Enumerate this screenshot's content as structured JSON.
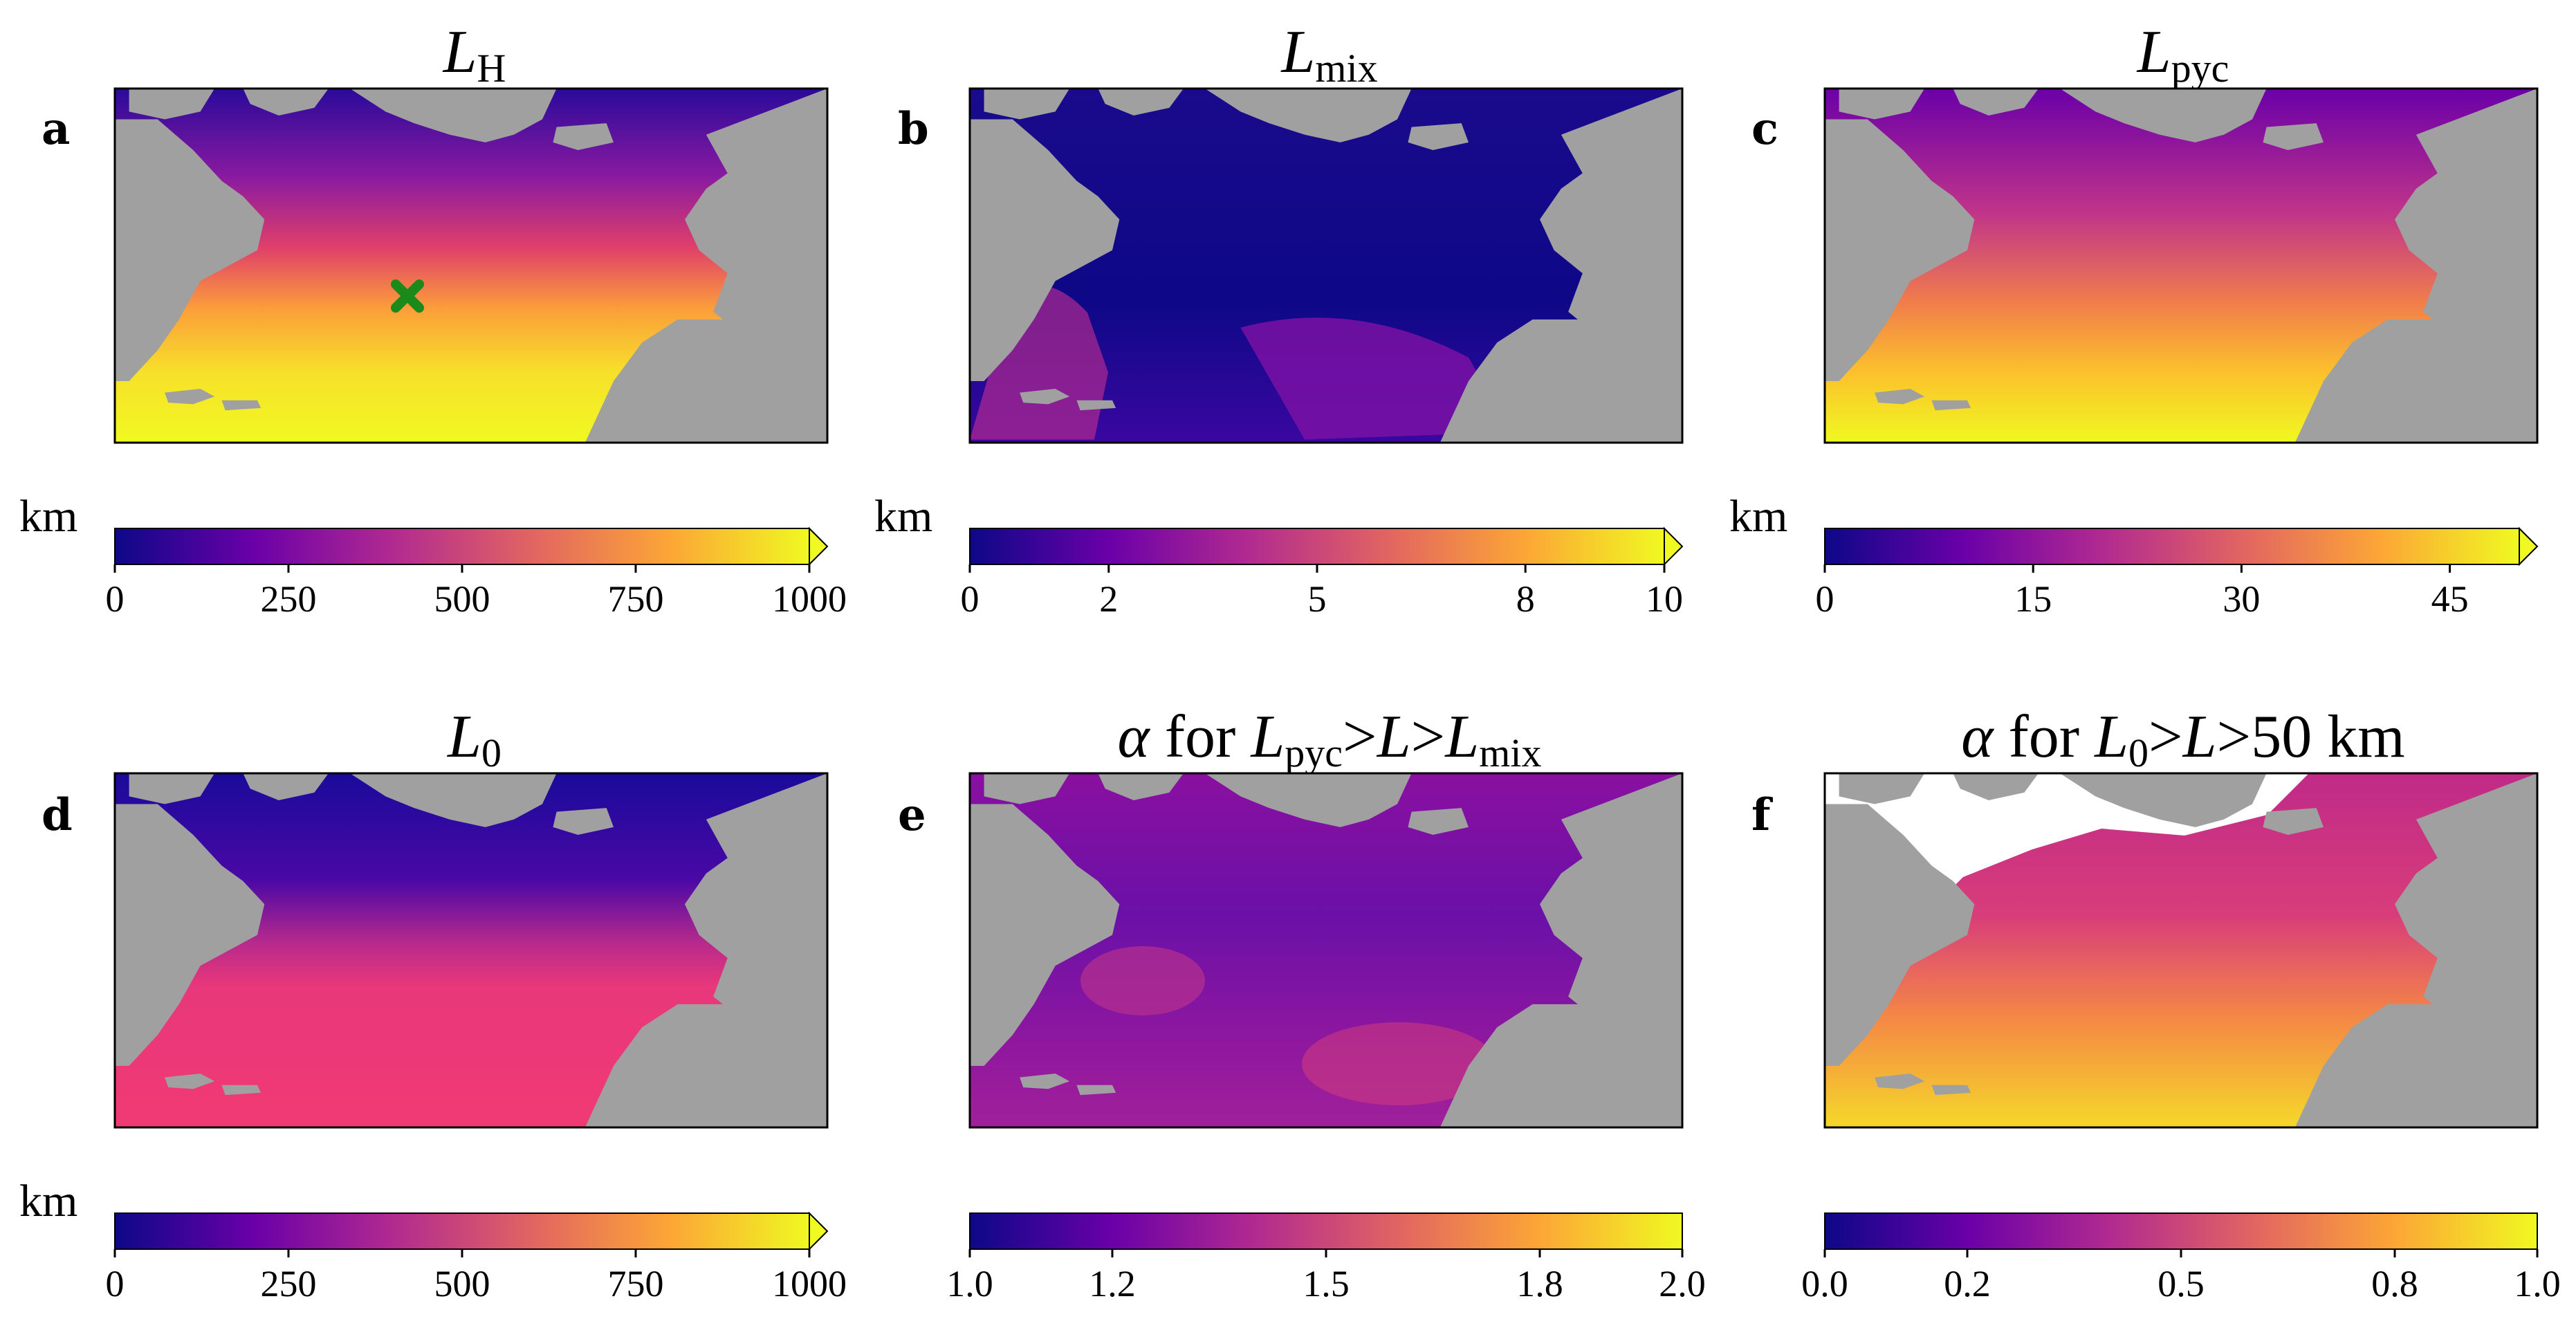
{
  "chart_data": [
    {
      "type": "heatmap",
      "panel": "a",
      "title": "L",
      "title_sub": "H",
      "colorbar": {
        "unit": "km",
        "range": [
          0,
          1000
        ],
        "ticks": [
          "0",
          "250",
          "500",
          "750",
          "1000"
        ],
        "extend": "max"
      },
      "marker": "green x",
      "colormap": "plasma"
    },
    {
      "type": "heatmap",
      "panel": "b",
      "title": "L",
      "title_sub": "mix",
      "colorbar": {
        "unit": "km",
        "range": [
          0,
          10
        ],
        "ticks": [
          "0",
          "2",
          "5",
          "8",
          "10"
        ],
        "extend": "max"
      },
      "colormap": "plasma"
    },
    {
      "type": "heatmap",
      "panel": "c",
      "title": "L",
      "title_sub": "pyc",
      "colorbar": {
        "unit": "km",
        "range": [
          0,
          50
        ],
        "ticks": [
          "0",
          "15",
          "30",
          "45"
        ],
        "extend": "max"
      },
      "colormap": "plasma"
    },
    {
      "type": "heatmap",
      "panel": "d",
      "title": "L",
      "title_sub": "0",
      "colorbar": {
        "unit": "km",
        "range": [
          0,
          1000
        ],
        "ticks": [
          "0",
          "250",
          "500",
          "750",
          "1000"
        ],
        "extend": "max"
      },
      "colormap": "plasma"
    },
    {
      "type": "heatmap",
      "panel": "e",
      "title_parts": [
        "α",
        "for",
        "L",
        "pyc",
        ">",
        "L",
        ">",
        "L",
        "mix"
      ],
      "colorbar": {
        "unit": "",
        "range": [
          1.0,
          2.0
        ],
        "ticks": [
          "1.0",
          "1.2",
          "1.5",
          "1.8",
          "2.0"
        ],
        "extend": "neither"
      },
      "colormap": "plasma"
    },
    {
      "type": "heatmap",
      "panel": "f",
      "title_parts": [
        "α",
        "for",
        "L",
        "0",
        ">",
        "L",
        ">",
        "50 km"
      ],
      "colorbar": {
        "unit": "",
        "range": [
          0.0,
          1.0
        ],
        "ticks": [
          "0.0",
          "0.2",
          "0.5",
          "0.8",
          "1.0"
        ],
        "extend": "neither"
      },
      "colormap": "plasma"
    }
  ],
  "colors": {
    "land": "#a0a0a0",
    "nan": "#ffffff",
    "marker": "#1a8a1a",
    "cmap": [
      "#0d0887",
      "#6a00a8",
      "#b12a90",
      "#e16462",
      "#fca636",
      "#f0f921"
    ]
  }
}
